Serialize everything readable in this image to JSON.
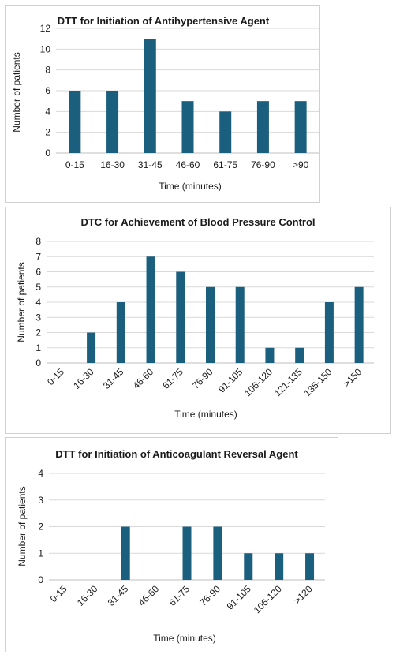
{
  "colors": {
    "bar": "#1b5f7e",
    "grid": "#d9d9d9",
    "text": "#1a1a1a"
  },
  "chart_data": [
    {
      "type": "bar",
      "title": "DTT for Initiation of Antihypertensive Agent",
      "xlabel": "Time (minutes)",
      "ylabel": "Number of patients",
      "categories": [
        "0-15",
        "16-30",
        "31-45",
        "46-60",
        "61-75",
        "76-90",
        ">90"
      ],
      "values": [
        6,
        6,
        11,
        5,
        4,
        5,
        5
      ],
      "ylim": [
        0,
        12
      ],
      "yticks": [
        0,
        2,
        4,
        6,
        8,
        10,
        12
      ],
      "grid": true,
      "legend": "none",
      "x_tick_rotation": "horizontal"
    },
    {
      "type": "bar",
      "title": "DTC for Achievement of Blood Pressure Control",
      "xlabel": "Time (minutes)",
      "ylabel": "Number of patients",
      "categories": [
        "0-15",
        "16-30",
        "31-45",
        "46-60",
        "61-75",
        "76-90",
        "91-105",
        "106-120",
        "121-135",
        "135-150",
        ">150"
      ],
      "values": [
        0,
        2,
        4,
        7,
        6,
        5,
        5,
        1,
        1,
        4,
        5
      ],
      "ylim": [
        0,
        8
      ],
      "yticks": [
        0,
        1,
        2,
        3,
        4,
        5,
        6,
        7,
        8
      ],
      "grid": true,
      "legend": "none",
      "x_tick_rotation": "diagonal"
    },
    {
      "type": "bar",
      "title": "DTT for Initiation of Anticoagulant Reversal Agent",
      "xlabel": "Time (minutes)",
      "ylabel": "Number of patients",
      "categories": [
        "0-15",
        "16-30",
        "31-45",
        "46-60",
        "61-75",
        "76-90",
        "91-105",
        "106-120",
        ">120"
      ],
      "values": [
        0,
        0,
        2,
        0,
        2,
        2,
        1,
        1,
        1
      ],
      "ylim": [
        0,
        4
      ],
      "yticks": [
        0,
        1,
        2,
        3,
        4
      ],
      "grid": true,
      "legend": "none",
      "x_tick_rotation": "diagonal"
    }
  ]
}
